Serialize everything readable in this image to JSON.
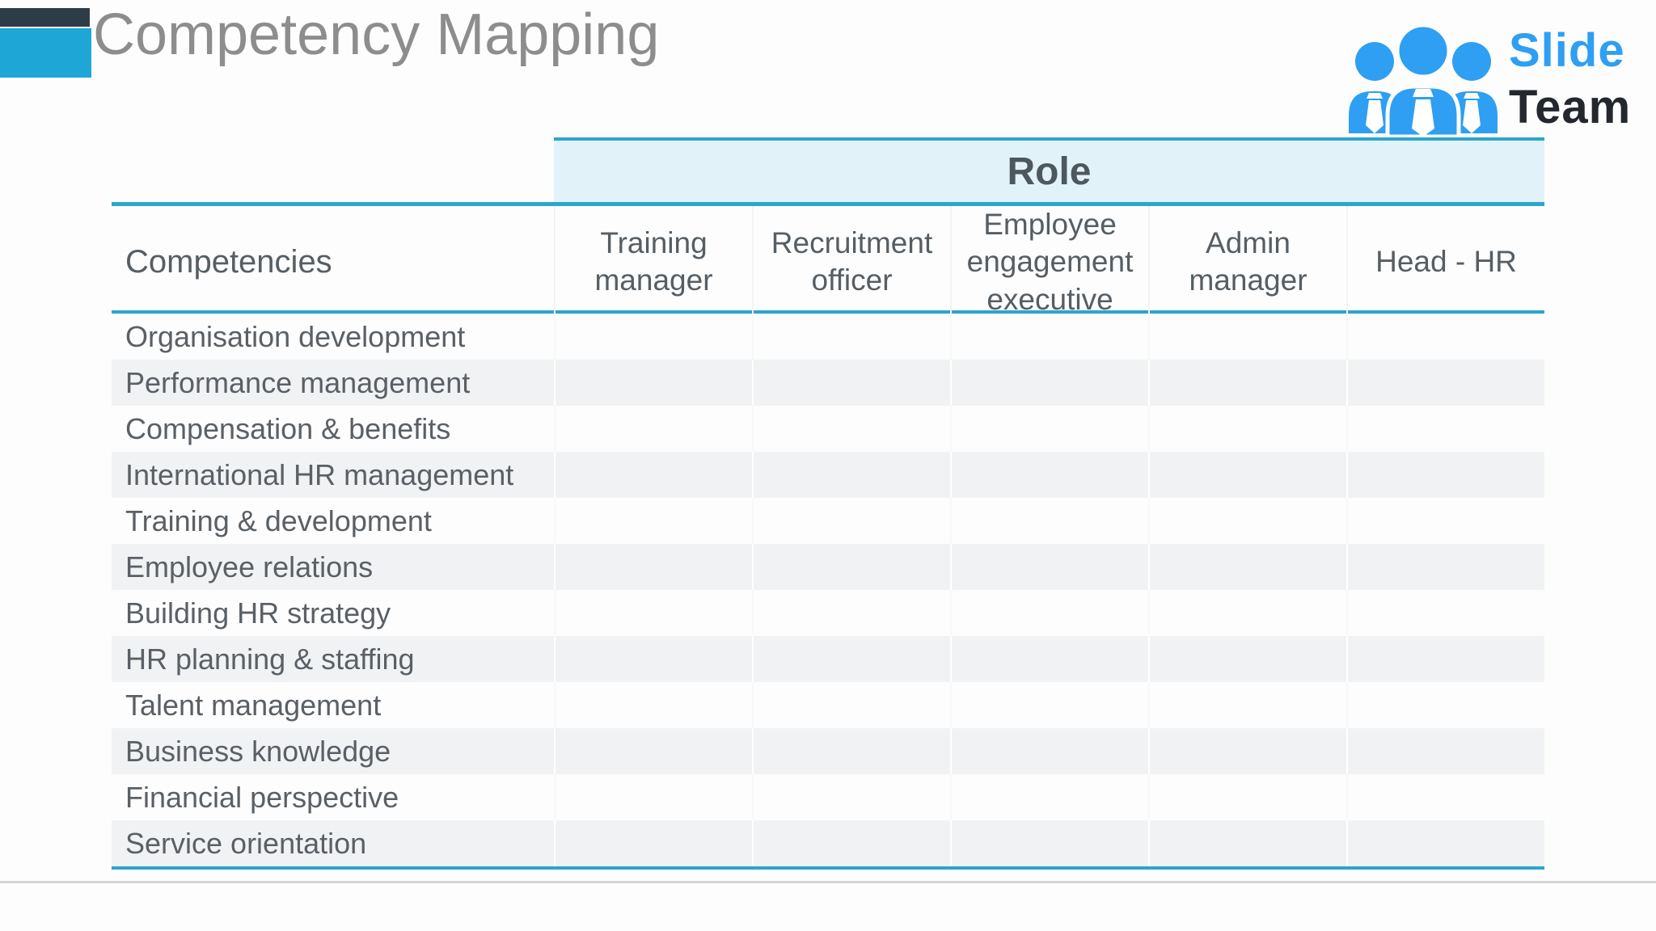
{
  "page": {
    "title": "Competency Mapping"
  },
  "logo": {
    "line1": "Slide",
    "line2": "Team",
    "icon": "team-people-icon"
  },
  "table": {
    "role_group_header": "Role",
    "competencies_header": "Competencies",
    "role_columns": [
      "Training manager",
      "Recruitment officer",
      "Employee engagement executive",
      "Admin manager",
      "Head - HR"
    ],
    "rows": [
      {
        "competency": "Organisation development",
        "cells": [
          "",
          "",
          "",
          "",
          ""
        ]
      },
      {
        "competency": "Performance management",
        "cells": [
          "",
          "",
          "",
          "",
          ""
        ]
      },
      {
        "competency": "Compensation & benefits",
        "cells": [
          "",
          "",
          "",
          "",
          ""
        ]
      },
      {
        "competency": "International HR management",
        "cells": [
          "",
          "",
          "",
          "",
          ""
        ]
      },
      {
        "competency": "Training & development",
        "cells": [
          "",
          "",
          "",
          "",
          ""
        ]
      },
      {
        "competency": "Employee relations",
        "cells": [
          "",
          "",
          "",
          "",
          ""
        ]
      },
      {
        "competency": "Building HR strategy",
        "cells": [
          "",
          "",
          "",
          "",
          ""
        ]
      },
      {
        "competency": "HR planning & staffing",
        "cells": [
          "",
          "",
          "",
          "",
          ""
        ]
      },
      {
        "competency": "Talent management",
        "cells": [
          "",
          "",
          "",
          "",
          ""
        ]
      },
      {
        "competency": "Business knowledge",
        "cells": [
          "",
          "",
          "",
          "",
          ""
        ]
      },
      {
        "competency": "Financial perspective",
        "cells": [
          "",
          "",
          "",
          "",
          ""
        ]
      },
      {
        "competency": "Service orientation",
        "cells": [
          "",
          "",
          "",
          "",
          ""
        ]
      }
    ]
  },
  "colors": {
    "accent_dark_navy": "#2e3c48",
    "accent_blue": "#1ea6d6",
    "table_line_blue": "#2ca6cb",
    "role_band_bg": "#e2f2f9",
    "alt_row_bg": "#f1f2f4",
    "title_gray": "#8d8d8d",
    "table_text": "#5a6065",
    "logo_blue": "#2e9ff3",
    "logo_dark": "#23272e",
    "bottom_rule_gray": "#d5d5d5"
  }
}
